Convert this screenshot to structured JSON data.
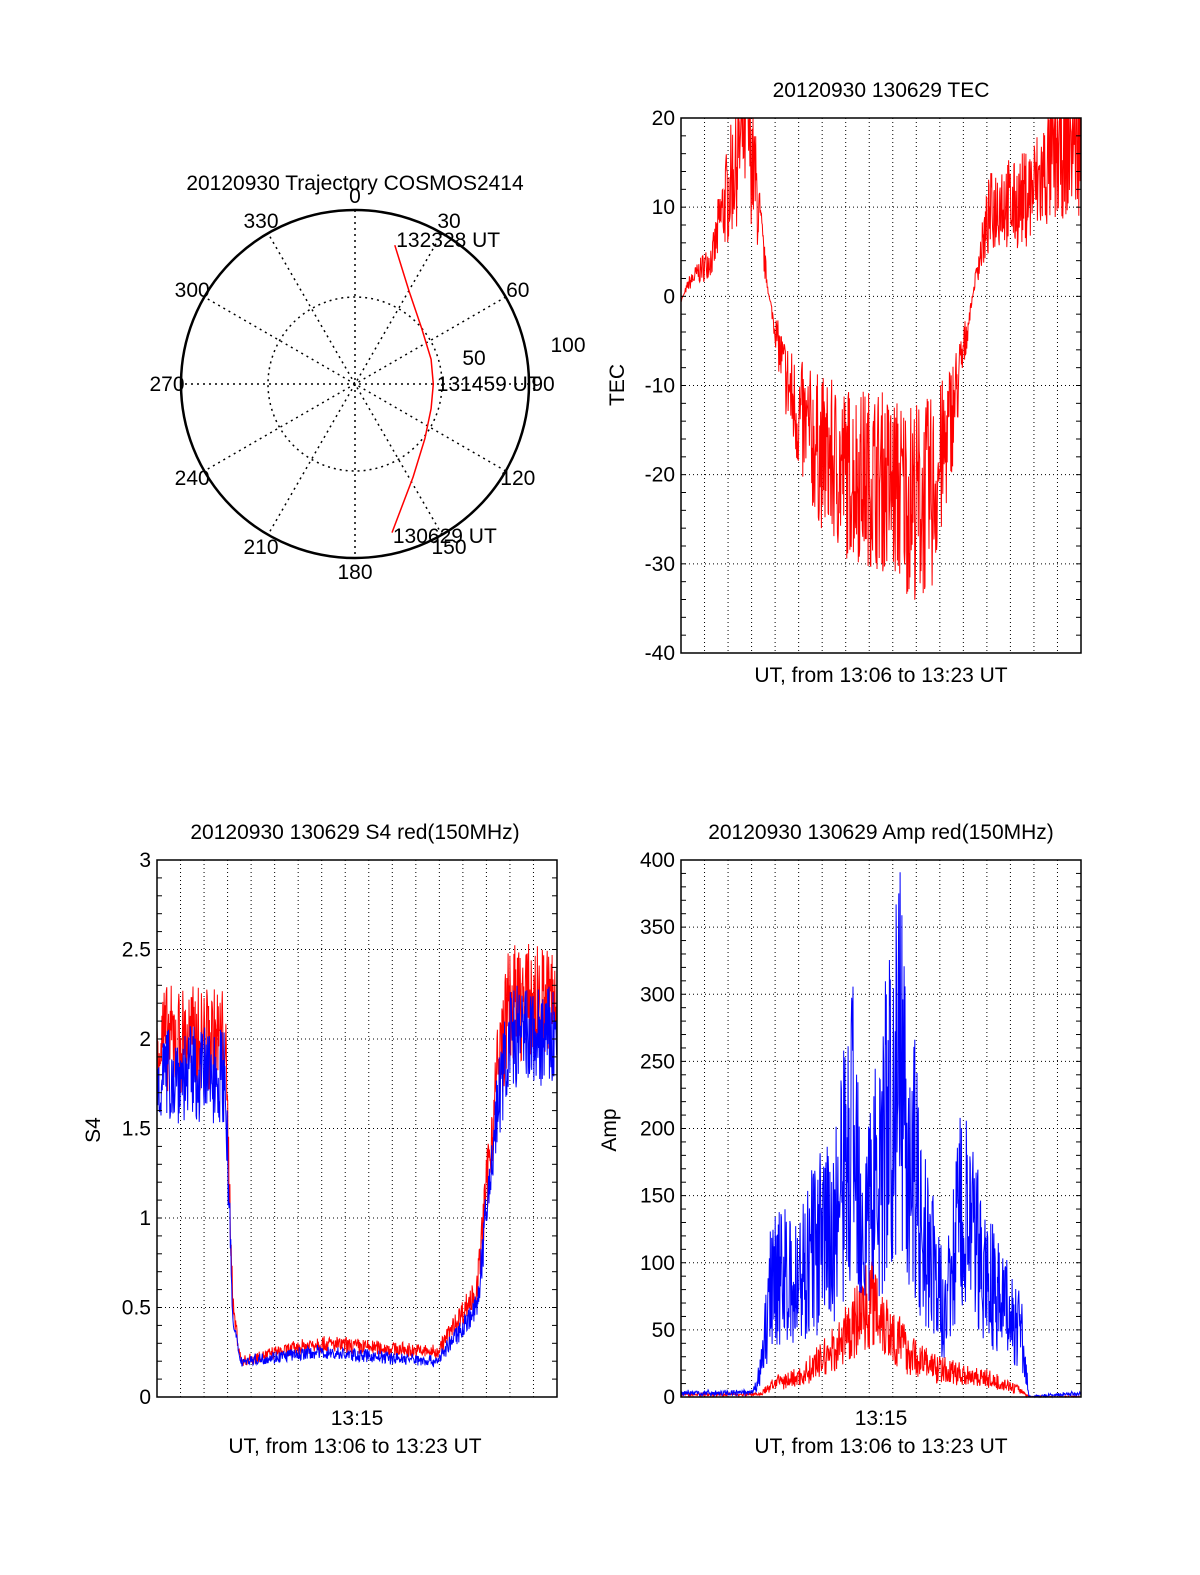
{
  "chart_data": [
    {
      "type": "polar",
      "title": "20120930 Trajectory COSMOS2414",
      "angle_labels": [
        "0",
        "30",
        "60",
        "90",
        "120",
        "150",
        "180",
        "210",
        "240",
        "270",
        "300",
        "330"
      ],
      "radius_labels": [
        "50",
        "100"
      ],
      "radius_max": 100,
      "trajectory": {
        "color": "#ff0000",
        "points": [
          {
            "az": 16,
            "el": 83
          },
          {
            "az": 30,
            "el": 62
          },
          {
            "az": 50,
            "el": 50
          },
          {
            "az": 72,
            "el": 46
          },
          {
            "az": 90,
            "el": 45
          },
          {
            "az": 108,
            "el": 46
          },
          {
            "az": 128,
            "el": 51
          },
          {
            "az": 148,
            "el": 63
          },
          {
            "az": 166,
            "el": 88
          }
        ]
      },
      "annotations": [
        {
          "label": "132328 UT",
          "az": 16,
          "el": 86
        },
        {
          "label": "131459 UT",
          "az": 90,
          "el": 47
        },
        {
          "label": "130629 UT",
          "az": 166,
          "el": 90
        }
      ]
    },
    {
      "type": "line",
      "title": "20120930 130629 TEC",
      "xlabel": "UT, from 13:06 to 13:23 UT",
      "ylabel": "TEC",
      "xlim": [
        0,
        1
      ],
      "ylim": [
        -40,
        20
      ],
      "yticks": [
        20,
        10,
        0,
        -10,
        -20,
        -30,
        -40
      ],
      "grid": true,
      "series": [
        {
          "color": "#ff0000",
          "noise": 0.5,
          "points": [
            [
              0.0,
              -0.5
            ],
            [
              0.02,
              1.5
            ],
            [
              0.04,
              2.5
            ],
            [
              0.06,
              3.5
            ],
            [
              0.08,
              4.5
            ],
            [
              0.1,
              9
            ],
            [
              0.12,
              12
            ],
            [
              0.14,
              16
            ],
            [
              0.165,
              19.5
            ],
            [
              0.18,
              15
            ],
            [
              0.2,
              7
            ],
            [
              0.22,
              0
            ],
            [
              0.25,
              -7
            ],
            [
              0.28,
              -12
            ],
            [
              0.31,
              -15
            ],
            [
              0.35,
              -17.5
            ],
            [
              0.4,
              -19.5
            ],
            [
              0.45,
              -20
            ],
            [
              0.5,
              -20.5
            ],
            [
              0.55,
              -22
            ],
            [
              0.6,
              -23
            ],
            [
              0.63,
              -22
            ],
            [
              0.66,
              -17
            ],
            [
              0.7,
              -8
            ],
            [
              0.74,
              3
            ],
            [
              0.77,
              9
            ],
            [
              0.8,
              11
            ],
            [
              0.83,
              10
            ],
            [
              0.86,
              11
            ],
            [
              0.9,
              13
            ],
            [
              0.94,
              16
            ],
            [
              0.97,
              18
            ],
            [
              1.0,
              18
            ]
          ]
        }
      ]
    },
    {
      "type": "line",
      "title": "20120930 130629 S4 red(150MHz)",
      "xlabel": "UT, from 13:06 to 13:23 UT",
      "ylabel": "S4",
      "xlim": [
        0,
        1
      ],
      "ylim": [
        0,
        3
      ],
      "yticks": [
        "0",
        "0.5",
        "1",
        "1.5",
        "2",
        "2.5",
        "3"
      ],
      "xticks": [
        {
          "value": 0.5,
          "label": "13:15"
        }
      ],
      "grid": true,
      "series": [
        {
          "color": "#ff0000",
          "noise": 0.15,
          "points": [
            [
              0.0,
              2.0
            ],
            [
              0.17,
              2.0
            ],
            [
              0.19,
              0.5
            ],
            [
              0.21,
              0.2
            ],
            [
              0.4,
              0.3
            ],
            [
              0.7,
              0.25
            ],
            [
              0.8,
              0.6
            ],
            [
              0.85,
              1.8
            ],
            [
              0.88,
              2.2
            ],
            [
              1.0,
              2.2
            ]
          ]
        },
        {
          "color": "#0000ff",
          "noise": 0.15,
          "points": [
            [
              0.0,
              1.8
            ],
            [
              0.17,
              1.8
            ],
            [
              0.19,
              0.4
            ],
            [
              0.21,
              0.2
            ],
            [
              0.4,
              0.25
            ],
            [
              0.7,
              0.2
            ],
            [
              0.8,
              0.5
            ],
            [
              0.85,
              1.6
            ],
            [
              0.88,
              2.0
            ],
            [
              1.0,
              2.0
            ]
          ]
        }
      ]
    },
    {
      "type": "line",
      "title": "20120930 130629 Amp red(150MHz)",
      "xlabel": "UT, from 13:06 to 13:23 UT",
      "ylabel": "Amp",
      "xlim": [
        0,
        1
      ],
      "ylim": [
        0,
        400
      ],
      "yticks": [
        0,
        50,
        100,
        150,
        200,
        250,
        300,
        350,
        400
      ],
      "xticks": [
        {
          "value": 0.5,
          "label": "13:15"
        }
      ],
      "grid": true,
      "series": [
        {
          "color": "#ff0000",
          "noise": 0.5,
          "points": [
            [
              0.0,
              2
            ],
            [
              0.2,
              2
            ],
            [
              0.23,
              10
            ],
            [
              0.3,
              15
            ],
            [
              0.4,
              40
            ],
            [
              0.48,
              75
            ],
            [
              0.52,
              50
            ],
            [
              0.58,
              30
            ],
            [
              0.65,
              20
            ],
            [
              0.75,
              15
            ],
            [
              0.85,
              5
            ],
            [
              0.87,
              0
            ],
            [
              1.0,
              0
            ]
          ]
        },
        {
          "color": "#0000ff",
          "noise": 0.6,
          "points": [
            [
              0.0,
              3
            ],
            [
              0.18,
              3
            ],
            [
              0.2,
              20
            ],
            [
              0.23,
              100
            ],
            [
              0.28,
              80
            ],
            [
              0.33,
              110
            ],
            [
              0.38,
              120
            ],
            [
              0.43,
              200
            ],
            [
              0.46,
              130
            ],
            [
              0.5,
              180
            ],
            [
              0.55,
              250
            ],
            [
              0.6,
              130
            ],
            [
              0.66,
              60
            ],
            [
              0.7,
              140
            ],
            [
              0.75,
              100
            ],
            [
              0.8,
              70
            ],
            [
              0.85,
              50
            ],
            [
              0.87,
              0
            ],
            [
              1.0,
              3
            ]
          ]
        }
      ]
    }
  ]
}
